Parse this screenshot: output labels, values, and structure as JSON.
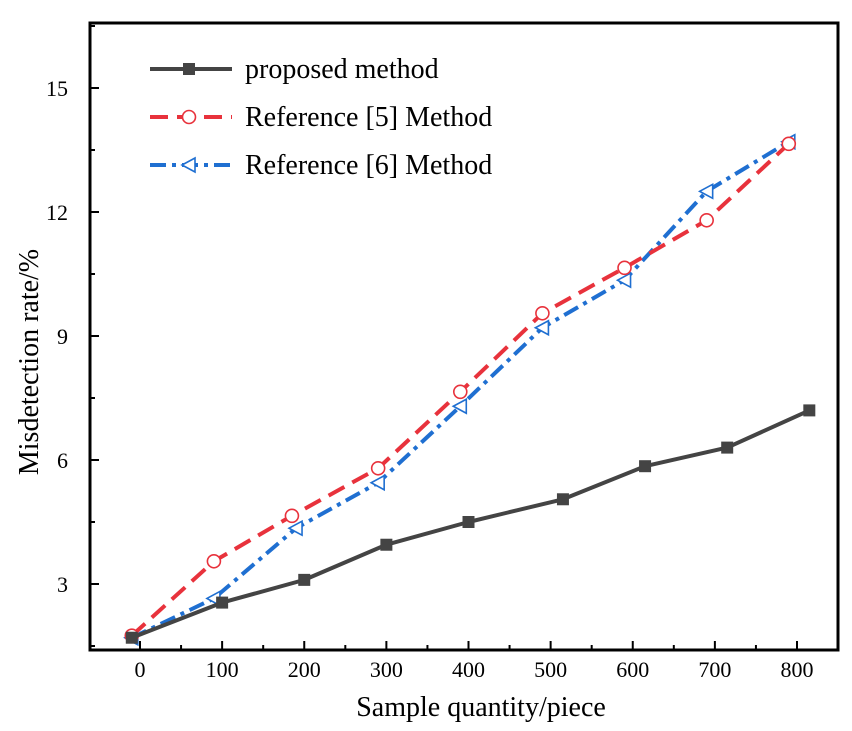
{
  "chart_data": {
    "type": "line",
    "title": "",
    "xlabel": "Sample quantity/piece",
    "ylabel": "Misdetection rate/%",
    "xlim": [
      -100,
      850
    ],
    "ylim": [
      1.5,
      16.5
    ],
    "xticks": [
      0,
      100,
      200,
      300,
      400,
      500,
      600,
      700,
      800
    ],
    "xtick_labels": [
      "0",
      "100",
      "200",
      "300",
      "400",
      "500",
      "600",
      "700",
      "800"
    ],
    "yticks": [
      3,
      6,
      9,
      12,
      15
    ],
    "ytick_labels": [
      "3",
      "6",
      "9",
      "12",
      "15"
    ],
    "grid": false,
    "legend_position": "top-left",
    "series": [
      {
        "name": "proposed method",
        "color": "#444444",
        "line_style": "solid",
        "marker": "square-filled",
        "x": [
          -10,
          100,
          200,
          300,
          400,
          515,
          615,
          715,
          815
        ],
        "y": [
          1.7,
          2.55,
          3.1,
          3.95,
          4.5,
          5.05,
          5.85,
          6.3,
          7.2
        ]
      },
      {
        "name": "Reference [5] Method",
        "color": "#e8323c",
        "line_style": "dashed",
        "marker": "circle-open",
        "x": [
          -10,
          90,
          185,
          290,
          390,
          490,
          590,
          690,
          790
        ],
        "y": [
          1.75,
          3.55,
          4.65,
          5.8,
          7.65,
          9.55,
          10.65,
          11.8,
          13.65
        ]
      },
      {
        "name": "Reference [6] Method",
        "color": "#1f6fd1",
        "line_style": "dashdot",
        "marker": "triangle-left-open",
        "x": [
          -10,
          90,
          190,
          290,
          390,
          490,
          590,
          690,
          790
        ],
        "y": [
          1.7,
          2.65,
          4.35,
          5.45,
          7.3,
          9.2,
          10.35,
          12.5,
          13.7
        ]
      }
    ]
  }
}
